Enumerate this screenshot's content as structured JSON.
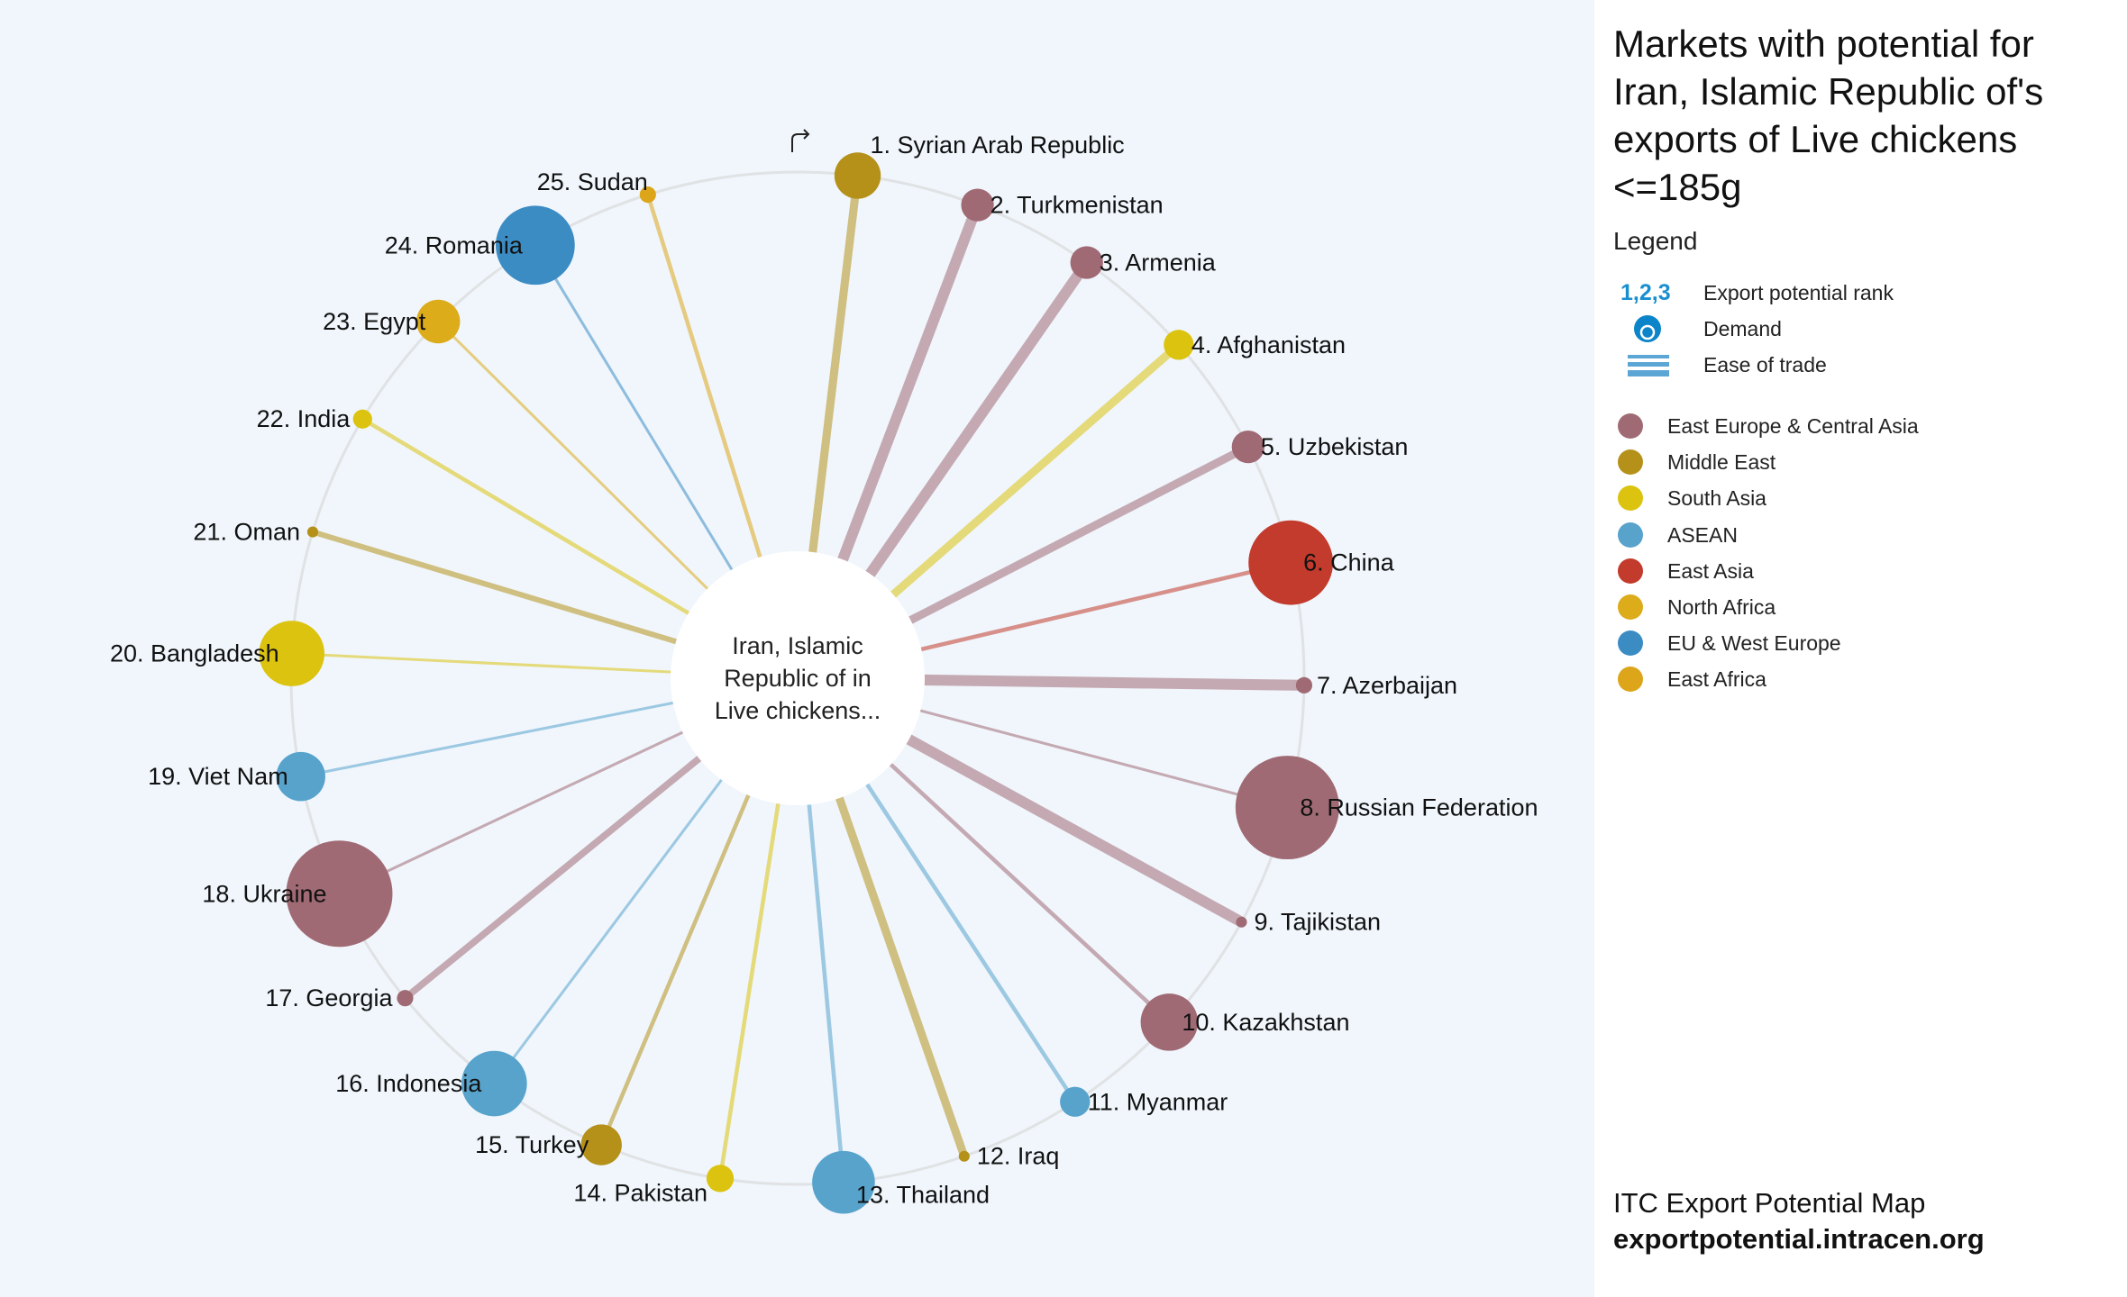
{
  "title": "Markets with potential for Iran, Islamic Republic of's exports of Live chickens <=185g",
  "center_label": [
    "Iran, Islamic",
    "Republic of in",
    "Live chickens..."
  ],
  "legend": {
    "heading": "Legend",
    "rank_icon": "1,2,3",
    "rank_label": "Export potential rank",
    "demand_label": "Demand",
    "ease_label": "Ease of trade",
    "accent": "#1a8fd0"
  },
  "regions": [
    {
      "name": "East Europe & Central Asia",
      "color": "#a06a74"
    },
    {
      "name": "Middle East",
      "color": "#b5911a"
    },
    {
      "name": "South Asia",
      "color": "#dcc30f"
    },
    {
      "name": "ASEAN",
      "color": "#57a3cc"
    },
    {
      "name": "East Asia",
      "color": "#c23b2c"
    },
    {
      "name": "North Africa",
      "color": "#dcac1a"
    },
    {
      "name": "EU & West Europe",
      "color": "#3c8cc4"
    },
    {
      "name": "East Africa",
      "color": "#dca51a"
    }
  ],
  "footer": {
    "line1": "ITC Export Potential Map",
    "line2": "exportpotential.intracen.org"
  },
  "rotate_icon": "rotate-arrow-icon",
  "chart_data": {
    "type": "radial",
    "markets": [
      {
        "label": "1. Syrian Arab Republic",
        "region": 1,
        "demand": 17,
        "ease": 6
      },
      {
        "label": "2. Turkmenistan",
        "region": 0,
        "demand": 12,
        "ease": 8
      },
      {
        "label": "3. Armenia",
        "region": 0,
        "demand": 12,
        "ease": 8
      },
      {
        "label": "4. Afghanistan",
        "region": 2,
        "demand": 11,
        "ease": 6
      },
      {
        "label": "5. Uzbekistan",
        "region": 0,
        "demand": 12,
        "ease": 6
      },
      {
        "label": "6. China",
        "region": 4,
        "demand": 31,
        "ease": 3
      },
      {
        "label": "7. Azerbaijan",
        "region": 0,
        "demand": 6,
        "ease": 8
      },
      {
        "label": "8. Russian Federation",
        "region": 0,
        "demand": 38,
        "ease": 2
      },
      {
        "label": "9. Tajikistan",
        "region": 0,
        "demand": 3,
        "ease": 8
      },
      {
        "label": "10. Kazakhstan",
        "region": 0,
        "demand": 21,
        "ease": 3
      },
      {
        "label": "11. Myanmar",
        "region": 3,
        "demand": 11,
        "ease": 3
      },
      {
        "label": "12. Iraq",
        "region": 1,
        "demand": 3,
        "ease": 6
      },
      {
        "label": "13. Thailand",
        "region": 3,
        "demand": 23,
        "ease": 3
      },
      {
        "label": "14. Pakistan",
        "region": 2,
        "demand": 10,
        "ease": 3
      },
      {
        "label": "15. Turkey",
        "region": 1,
        "demand": 15,
        "ease": 3
      },
      {
        "label": "16. Indonesia",
        "region": 3,
        "demand": 24,
        "ease": 2
      },
      {
        "label": "17. Georgia",
        "region": 0,
        "demand": 6,
        "ease": 5
      },
      {
        "label": "18. Ukraine",
        "region": 0,
        "demand": 39,
        "ease": 2
      },
      {
        "label": "19. Viet Nam",
        "region": 3,
        "demand": 18,
        "ease": 2
      },
      {
        "label": "20. Bangladesh",
        "region": 2,
        "demand": 24,
        "ease": 2
      },
      {
        "label": "21. Oman",
        "region": 1,
        "demand": 4,
        "ease": 4
      },
      {
        "label": "22. India",
        "region": 2,
        "demand": 7,
        "ease": 3
      },
      {
        "label": "23. Egypt",
        "region": 5,
        "demand": 16,
        "ease": 2
      },
      {
        "label": "24. Romania",
        "region": 6,
        "demand": 29,
        "ease": 2
      },
      {
        "label": "25. Sudan",
        "region": 7,
        "demand": 6,
        "ease": 3
      }
    ]
  }
}
